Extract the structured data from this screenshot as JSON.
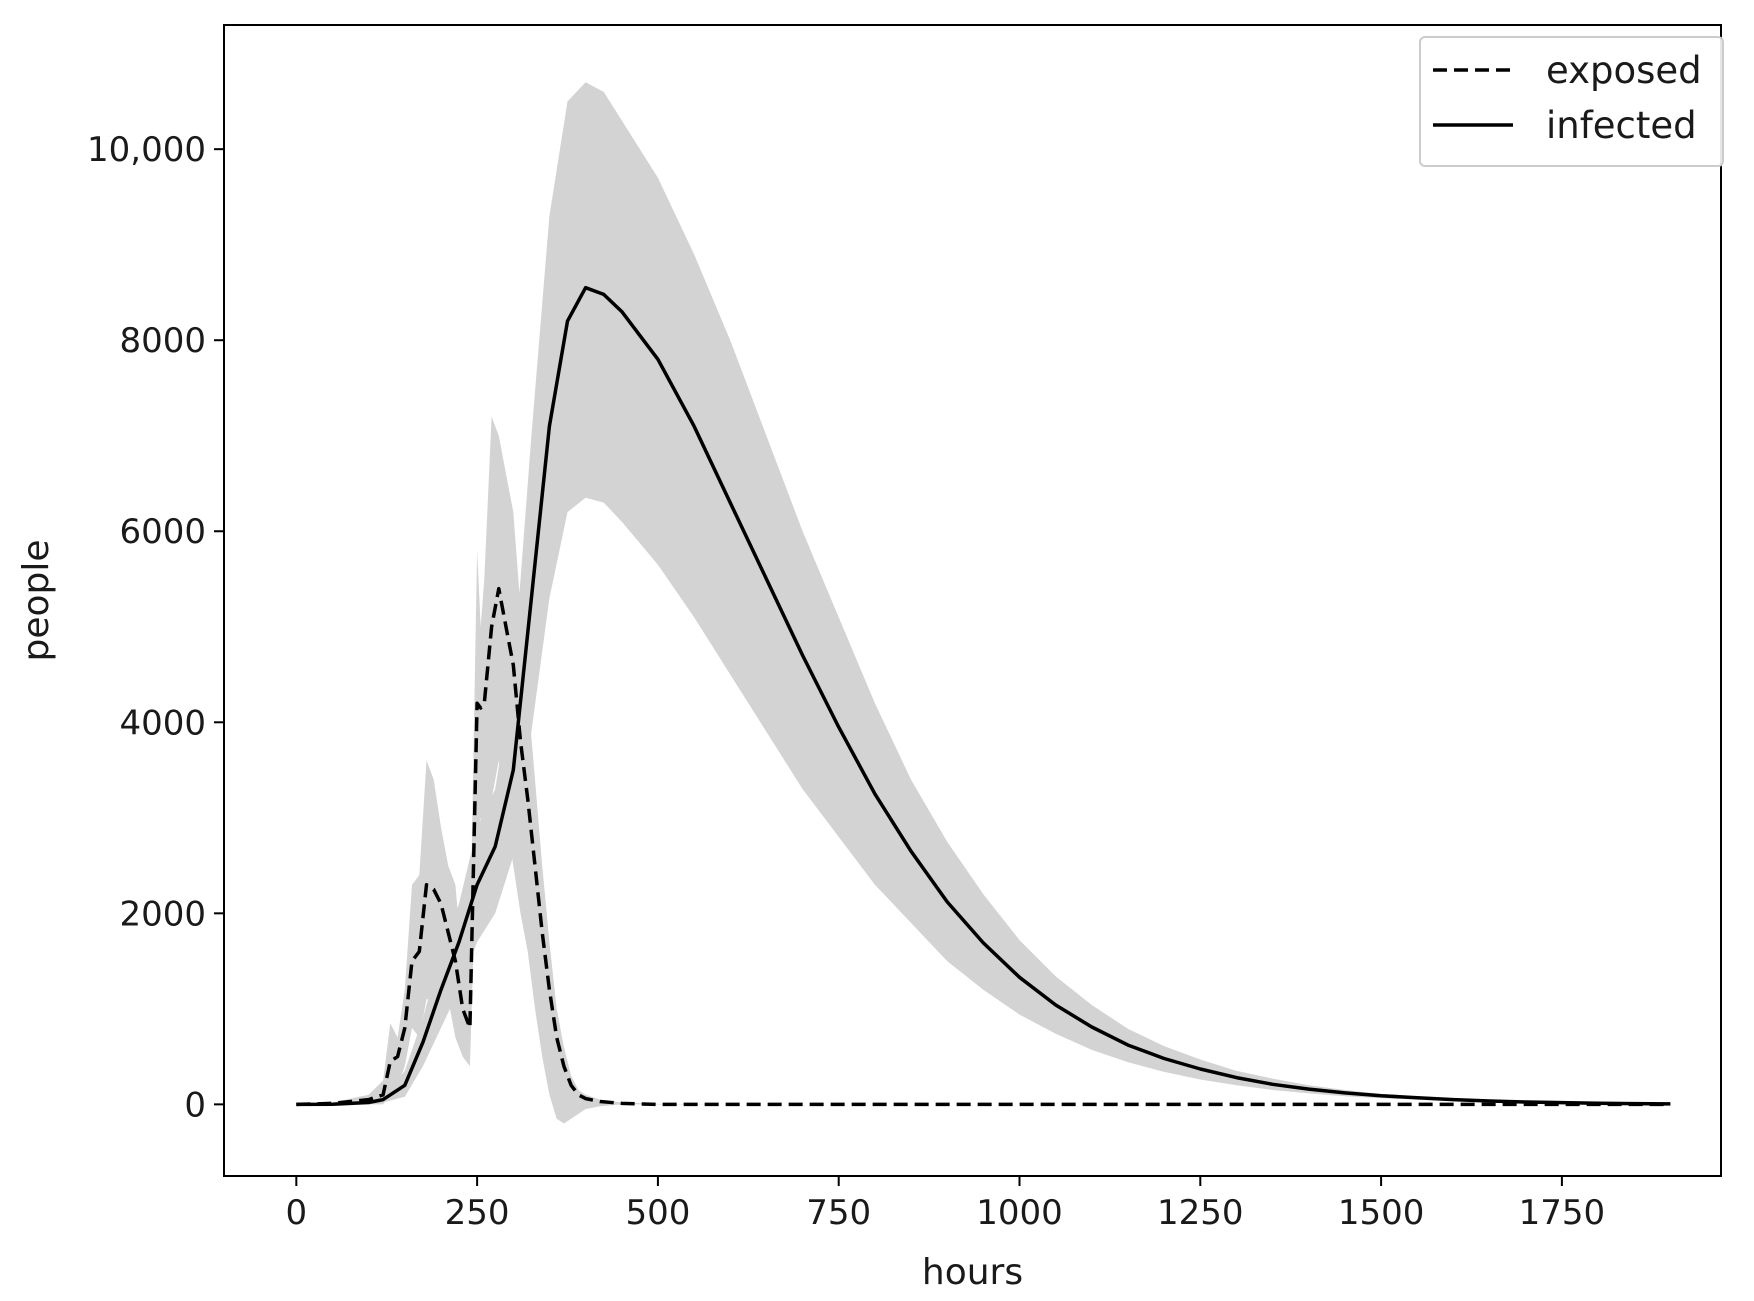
{
  "chart_data": {
    "type": "line",
    "title": "",
    "xlabel": "hours",
    "ylabel": "people",
    "xlim": [
      -100,
      1970
    ],
    "ylim": [
      -750,
      11300
    ],
    "x_ticks": [
      0,
      250,
      500,
      750,
      1000,
      1250,
      1500,
      1750
    ],
    "x_tick_labels": [
      "0",
      "250",
      "500",
      "750",
      "1000",
      "1250",
      "1500",
      "1750"
    ],
    "y_ticks": [
      0,
      2000,
      4000,
      6000,
      8000,
      10000
    ],
    "y_tick_labels": [
      "0",
      "2000",
      "4000",
      "6000",
      "8000",
      "10,000"
    ],
    "grid": false,
    "legend_position": "top-right",
    "band_color": "#d3d3d3",
    "line_color": "#000000",
    "series": [
      {
        "name": "exposed",
        "style": "dashed",
        "x": [
          0,
          50,
          100,
          120,
          130,
          140,
          150,
          160,
          170,
          180,
          190,
          200,
          210,
          220,
          230,
          240,
          250,
          255,
          260,
          270,
          280,
          290,
          300,
          310,
          320,
          330,
          340,
          350,
          360,
          370,
          380,
          390,
          400,
          420,
          450,
          500,
          600,
          800,
          1000,
          1250,
          1500,
          1750,
          1900
        ],
        "y": [
          0,
          10,
          50,
          100,
          450,
          500,
          800,
          1500,
          1600,
          2300,
          2250,
          2100,
          1800,
          1500,
          1000,
          800,
          4200,
          4150,
          4200,
          5000,
          5400,
          5000,
          4600,
          3800,
          3200,
          2500,
          1800,
          1200,
          700,
          400,
          200,
          100,
          60,
          30,
          10,
          0,
          0,
          0,
          0,
          0,
          0,
          0,
          0
        ],
        "band_upper": [
          0,
          20,
          100,
          250,
          850,
          700,
          1200,
          2300,
          2400,
          3600,
          3400,
          2900,
          2500,
          2300,
          1400,
          1600,
          5800,
          5000,
          5500,
          7200,
          7000,
          6600,
          6200,
          5200,
          4300,
          3400,
          2500,
          1700,
          1000,
          600,
          300,
          150,
          100,
          50,
          20,
          5,
          0,
          0,
          0,
          0,
          0,
          0,
          0
        ],
        "band_lower": [
          0,
          0,
          0,
          0,
          100,
          200,
          400,
          800,
          700,
          1100,
          1100,
          1200,
          1100,
          700,
          500,
          400,
          2800,
          3000,
          2800,
          3200,
          3600,
          3000,
          2500,
          2000,
          1600,
          1000,
          500,
          100,
          -150,
          -200,
          -150,
          -100,
          -50,
          -20,
          0,
          0,
          0,
          0,
          0,
          0,
          0,
          0,
          0
        ]
      },
      {
        "name": "infected",
        "style": "solid",
        "x": [
          0,
          50,
          100,
          120,
          150,
          175,
          200,
          225,
          250,
          275,
          300,
          325,
          350,
          375,
          400,
          425,
          450,
          500,
          550,
          600,
          650,
          700,
          750,
          800,
          850,
          900,
          950,
          1000,
          1050,
          1100,
          1150,
          1200,
          1250,
          1300,
          1350,
          1400,
          1450,
          1500,
          1550,
          1600,
          1650,
          1700,
          1750,
          1800,
          1850,
          1900
        ],
        "y": [
          0,
          2,
          20,
          50,
          200,
          650,
          1200,
          1700,
          2300,
          2700,
          3500,
          5300,
          7100,
          8200,
          8550,
          8480,
          8300,
          7800,
          7100,
          6300,
          5500,
          4700,
          3950,
          3250,
          2650,
          2120,
          1690,
          1330,
          1040,
          810,
          620,
          480,
          370,
          280,
          210,
          160,
          120,
          90,
          70,
          50,
          35,
          25,
          18,
          12,
          8,
          5
        ],
        "band_upper": [
          0,
          5,
          40,
          80,
          350,
          900,
          1600,
          2100,
          2900,
          3300,
          4500,
          7000,
          9300,
          10500,
          10700,
          10600,
          10300,
          9700,
          8900,
          8000,
          7000,
          6000,
          5100,
          4200,
          3400,
          2750,
          2200,
          1720,
          1340,
          1040,
          790,
          610,
          470,
          350,
          270,
          200,
          150,
          110,
          85,
          60,
          40,
          30,
          20,
          14,
          9,
          6
        ],
        "band_lower": [
          0,
          0,
          5,
          20,
          80,
          400,
          800,
          1200,
          1700,
          2000,
          2600,
          3900,
          5300,
          6200,
          6350,
          6300,
          6100,
          5650,
          5100,
          4500,
          3900,
          3300,
          2800,
          2300,
          1900,
          1500,
          1200,
          940,
          740,
          570,
          440,
          340,
          260,
          200,
          150,
          115,
          85,
          65,
          50,
          36,
          26,
          18,
          13,
          9,
          6,
          4
        ]
      }
    ]
  }
}
